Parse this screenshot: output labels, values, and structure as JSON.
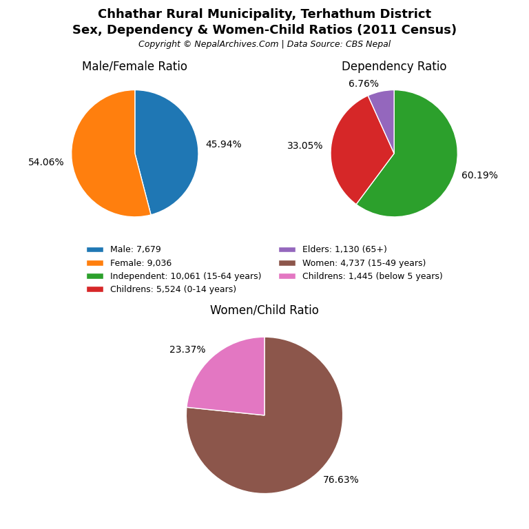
{
  "title": "Chhathar Rural Municipality, Terhathum District",
  "subtitle": "Sex, Dependency & Women-Child Ratios (2011 Census)",
  "annotations": [
    "Copyright © NepalArchives.Com | Data Source: CBS Nepal"
  ],
  "legend": "center",
  "chart_data": [
    {
      "type": "pie",
      "title": "Male/Female Ratio",
      "categories": [
        "Male: 7,679",
        "Female: 9,036"
      ],
      "values": [
        45.94,
        54.06
      ],
      "value_labels": [
        "45.94%",
        "54.06%"
      ],
      "data_labels": true
    },
    {
      "type": "pie",
      "title": "Dependency Ratio",
      "categories": [
        "Independent: 10,061 (15-64 years)",
        "Childrens: 5,524 (0-14 years)",
        "Elders: 1,130 (65+)"
      ],
      "values": [
        60.19,
        33.05,
        6.76
      ],
      "value_labels": [
        "60.19%",
        "33.05%",
        "6.76%"
      ],
      "data_labels": true
    },
    {
      "type": "pie",
      "title": "Women/Child Ratio",
      "categories": [
        "Women: 4,737 (15-49 years)",
        "Childrens: 1,445 (below 5 years)"
      ],
      "values": [
        76.63,
        23.37
      ],
      "value_labels": [
        "76.63%",
        "23.37%"
      ],
      "data_labels": true
    }
  ]
}
